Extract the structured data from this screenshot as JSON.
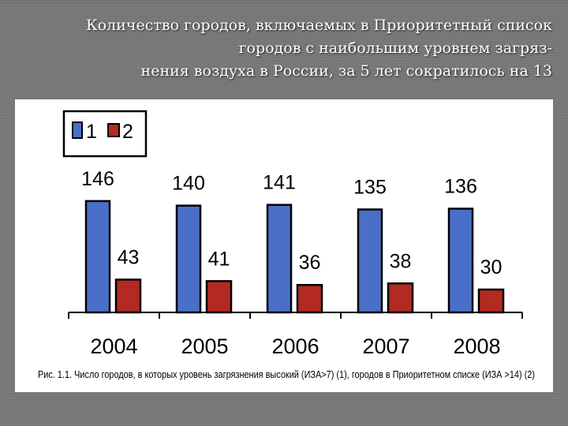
{
  "slide": {
    "title_lines": [
      "Количество городов, включаемых в Приоритетный список",
      "городов с наибольшим уровнем загряз-",
      "нения воздуха в России, за 5 лет сократилось на 13"
    ]
  },
  "colors": {
    "series1": "#4a6fc9",
    "series2": "#b22a22",
    "outline": "#000000"
  },
  "chart_data": {
    "type": "bar",
    "categories": [
      "2004",
      "2005",
      "2006",
      "2007",
      "2008"
    ],
    "series": [
      {
        "name": "1",
        "values": [
          146,
          140,
          141,
          135,
          136
        ]
      },
      {
        "name": "2",
        "values": [
          43,
          41,
          36,
          38,
          30
        ]
      }
    ],
    "ylim": [
      0,
      150
    ],
    "legend": "top-left",
    "grid": false,
    "caption": "Рис. 1.1. Число городов, в которых уровень загрязнения высокий (ИЗА>7) (1), городов в Приоритетном списке (ИЗА >14) (2)"
  }
}
